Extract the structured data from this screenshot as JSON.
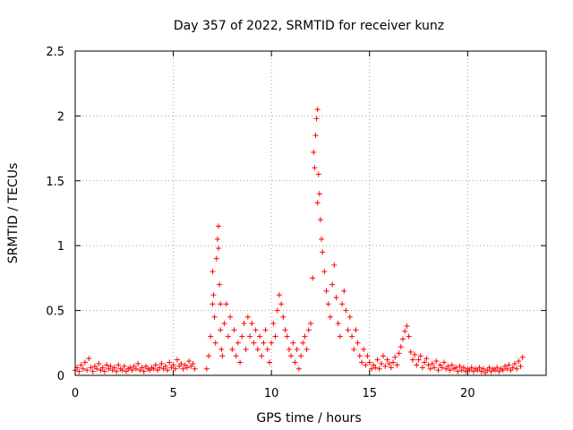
{
  "chart_data": {
    "type": "scatter",
    "title": "Day 357 of 2022, SRMTID for receiver kunz",
    "xlabel": "GPS time / hours",
    "ylabel": "SRMTID / TECUs",
    "xlim": [
      0,
      24
    ],
    "ylim": [
      0,
      2.5
    ],
    "xticks": [
      0,
      5,
      10,
      15,
      20
    ],
    "xtick_labels": [
      "0",
      "5",
      "10",
      "15",
      "20"
    ],
    "yticks": [
      0,
      0.5,
      1,
      1.5,
      2,
      2.5
    ],
    "ytick_labels": [
      "0",
      "0.5",
      "1",
      "1.5",
      "2",
      "2.5"
    ],
    "grid": true,
    "marker": "+",
    "color": "#ff0000",
    "series": [
      {
        "name": "SRMTID",
        "points": [
          [
            0.0,
            0.04
          ],
          [
            0.1,
            0.06
          ],
          [
            0.2,
            0.03
          ],
          [
            0.3,
            0.08
          ],
          [
            0.4,
            0.05
          ],
          [
            0.5,
            0.1
          ],
          [
            0.6,
            0.04
          ],
          [
            0.7,
            0.13
          ],
          [
            0.8,
            0.06
          ],
          [
            0.9,
            0.03
          ],
          [
            1.0,
            0.07
          ],
          [
            1.1,
            0.05
          ],
          [
            1.2,
            0.09
          ],
          [
            1.3,
            0.04
          ],
          [
            1.4,
            0.06
          ],
          [
            1.5,
            0.03
          ],
          [
            1.6,
            0.08
          ],
          [
            1.7,
            0.05
          ],
          [
            1.8,
            0.07
          ],
          [
            1.9,
            0.04
          ],
          [
            2.0,
            0.06
          ],
          [
            2.1,
            0.03
          ],
          [
            2.2,
            0.08
          ],
          [
            2.3,
            0.05
          ],
          [
            2.4,
            0.04
          ],
          [
            2.5,
            0.07
          ],
          [
            2.6,
            0.03
          ],
          [
            2.7,
            0.05
          ],
          [
            2.8,
            0.06
          ],
          [
            2.9,
            0.04
          ],
          [
            3.0,
            0.07
          ],
          [
            3.1,
            0.05
          ],
          [
            3.2,
            0.09
          ],
          [
            3.3,
            0.04
          ],
          [
            3.4,
            0.06
          ],
          [
            3.5,
            0.03
          ],
          [
            3.6,
            0.07
          ],
          [
            3.7,
            0.05
          ],
          [
            3.8,
            0.04
          ],
          [
            3.9,
            0.06
          ],
          [
            4.0,
            0.05
          ],
          [
            4.1,
            0.08
          ],
          [
            4.2,
            0.04
          ],
          [
            4.3,
            0.06
          ],
          [
            4.4,
            0.09
          ],
          [
            4.5,
            0.05
          ],
          [
            4.6,
            0.07
          ],
          [
            4.7,
            0.04
          ],
          [
            4.8,
            0.1
          ],
          [
            4.9,
            0.06
          ],
          [
            5.0,
            0.08
          ],
          [
            5.1,
            0.05
          ],
          [
            5.2,
            0.12
          ],
          [
            5.3,
            0.07
          ],
          [
            5.4,
            0.09
          ],
          [
            5.5,
            0.05
          ],
          [
            5.6,
            0.08
          ],
          [
            5.7,
            0.06
          ],
          [
            5.8,
            0.11
          ],
          [
            5.9,
            0.07
          ],
          [
            6.0,
            0.09
          ],
          [
            6.1,
            0.05
          ],
          [
            6.7,
            0.05
          ],
          [
            6.8,
            0.15
          ],
          [
            6.9,
            0.3
          ],
          [
            7.0,
            0.55
          ],
          [
            7.0,
            0.8
          ],
          [
            7.05,
            0.62
          ],
          [
            7.1,
            0.45
          ],
          [
            7.15,
            0.25
          ],
          [
            7.2,
            0.9
          ],
          [
            7.25,
            1.05
          ],
          [
            7.3,
            1.15
          ],
          [
            7.3,
            0.98
          ],
          [
            7.35,
            0.7
          ],
          [
            7.4,
            0.55
          ],
          [
            7.4,
            0.35
          ],
          [
            7.45,
            0.2
          ],
          [
            7.5,
            0.15
          ],
          [
            7.6,
            0.4
          ],
          [
            7.7,
            0.55
          ],
          [
            7.8,
            0.3
          ],
          [
            7.9,
            0.45
          ],
          [
            8.0,
            0.2
          ],
          [
            8.1,
            0.35
          ],
          [
            8.2,
            0.15
          ],
          [
            8.3,
            0.25
          ],
          [
            8.4,
            0.1
          ],
          [
            8.5,
            0.3
          ],
          [
            8.6,
            0.4
          ],
          [
            8.7,
            0.2
          ],
          [
            8.8,
            0.45
          ],
          [
            8.9,
            0.3
          ],
          [
            9.0,
            0.4
          ],
          [
            9.1,
            0.25
          ],
          [
            9.2,
            0.35
          ],
          [
            9.3,
            0.2
          ],
          [
            9.4,
            0.3
          ],
          [
            9.5,
            0.15
          ],
          [
            9.6,
            0.25
          ],
          [
            9.7,
            0.35
          ],
          [
            9.8,
            0.2
          ],
          [
            9.9,
            0.1
          ],
          [
            10.0,
            0.25
          ],
          [
            10.1,
            0.4
          ],
          [
            10.2,
            0.3
          ],
          [
            10.3,
            0.5
          ],
          [
            10.4,
            0.62
          ],
          [
            10.5,
            0.55
          ],
          [
            10.6,
            0.45
          ],
          [
            10.7,
            0.35
          ],
          [
            10.8,
            0.3
          ],
          [
            10.9,
            0.2
          ],
          [
            11.0,
            0.15
          ],
          [
            11.1,
            0.25
          ],
          [
            11.2,
            0.1
          ],
          [
            11.3,
            0.2
          ],
          [
            11.4,
            0.05
          ],
          [
            11.5,
            0.15
          ],
          [
            11.6,
            0.25
          ],
          [
            11.7,
            0.3
          ],
          [
            11.8,
            0.2
          ],
          [
            11.9,
            0.35
          ],
          [
            12.0,
            0.4
          ],
          [
            12.1,
            0.75
          ],
          [
            12.15,
            1.72
          ],
          [
            12.2,
            1.6
          ],
          [
            12.25,
            1.85
          ],
          [
            12.3,
            1.98
          ],
          [
            12.35,
            2.05
          ],
          [
            12.35,
            1.33
          ],
          [
            12.4,
            1.55
          ],
          [
            12.45,
            1.4
          ],
          [
            12.5,
            1.2
          ],
          [
            12.55,
            1.05
          ],
          [
            12.6,
            0.95
          ],
          [
            12.7,
            0.8
          ],
          [
            12.8,
            0.65
          ],
          [
            12.9,
            0.55
          ],
          [
            13.0,
            0.45
          ],
          [
            13.1,
            0.7
          ],
          [
            13.2,
            0.85
          ],
          [
            13.3,
            0.6
          ],
          [
            13.4,
            0.4
          ],
          [
            13.5,
            0.3
          ],
          [
            13.6,
            0.55
          ],
          [
            13.7,
            0.65
          ],
          [
            13.8,
            0.5
          ],
          [
            13.9,
            0.35
          ],
          [
            14.0,
            0.45
          ],
          [
            14.1,
            0.3
          ],
          [
            14.2,
            0.2
          ],
          [
            14.3,
            0.35
          ],
          [
            14.4,
            0.25
          ],
          [
            14.5,
            0.15
          ],
          [
            14.6,
            0.1
          ],
          [
            14.7,
            0.2
          ],
          [
            14.8,
            0.08
          ],
          [
            14.9,
            0.15
          ],
          [
            15.0,
            0.1
          ],
          [
            15.1,
            0.05
          ],
          [
            15.2,
            0.08
          ],
          [
            15.3,
            0.06
          ],
          [
            15.4,
            0.12
          ],
          [
            15.5,
            0.05
          ],
          [
            15.6,
            0.09
          ],
          [
            15.7,
            0.15
          ],
          [
            15.8,
            0.07
          ],
          [
            15.9,
            0.12
          ],
          [
            16.0,
            0.09
          ],
          [
            16.1,
            0.06
          ],
          [
            16.2,
            0.1
          ],
          [
            16.3,
            0.14
          ],
          [
            16.4,
            0.08
          ],
          [
            16.5,
            0.17
          ],
          [
            16.6,
            0.22
          ],
          [
            16.7,
            0.28
          ],
          [
            16.8,
            0.34
          ],
          [
            16.9,
            0.38
          ],
          [
            17.0,
            0.3
          ],
          [
            17.1,
            0.18
          ],
          [
            17.2,
            0.12
          ],
          [
            17.3,
            0.16
          ],
          [
            17.4,
            0.08
          ],
          [
            17.5,
            0.12
          ],
          [
            17.6,
            0.15
          ],
          [
            17.7,
            0.06
          ],
          [
            17.8,
            0.1
          ],
          [
            17.9,
            0.13
          ],
          [
            18.0,
            0.08
          ],
          [
            18.1,
            0.05
          ],
          [
            18.2,
            0.09
          ],
          [
            18.3,
            0.06
          ],
          [
            18.4,
            0.11
          ],
          [
            18.5,
            0.04
          ],
          [
            18.6,
            0.08
          ],
          [
            18.7,
            0.06
          ],
          [
            18.8,
            0.1
          ],
          [
            18.9,
            0.05
          ],
          [
            19.0,
            0.07
          ],
          [
            19.1,
            0.04
          ],
          [
            19.2,
            0.08
          ],
          [
            19.3,
            0.05
          ],
          [
            19.4,
            0.06
          ],
          [
            19.5,
            0.03
          ],
          [
            19.6,
            0.07
          ],
          [
            19.7,
            0.04
          ],
          [
            19.8,
            0.06
          ],
          [
            19.9,
            0.03
          ],
          [
            20.0,
            0.05
          ],
          [
            20.1,
            0.04
          ],
          [
            20.2,
            0.06
          ],
          [
            20.3,
            0.03
          ],
          [
            20.4,
            0.05
          ],
          [
            20.5,
            0.04
          ],
          [
            20.6,
            0.06
          ],
          [
            20.7,
            0.03
          ],
          [
            20.8,
            0.05
          ],
          [
            20.9,
            0.02
          ],
          [
            21.0,
            0.04
          ],
          [
            21.1,
            0.06
          ],
          [
            21.2,
            0.03
          ],
          [
            21.3,
            0.05
          ],
          [
            21.4,
            0.04
          ],
          [
            21.5,
            0.06
          ],
          [
            21.6,
            0.03
          ],
          [
            21.7,
            0.05
          ],
          [
            21.8,
            0.04
          ],
          [
            21.9,
            0.07
          ],
          [
            22.0,
            0.05
          ],
          [
            22.1,
            0.08
          ],
          [
            22.2,
            0.04
          ],
          [
            22.3,
            0.06
          ],
          [
            22.4,
            0.09
          ],
          [
            22.5,
            0.05
          ],
          [
            22.6,
            0.11
          ],
          [
            22.7,
            0.07
          ],
          [
            22.8,
            0.14
          ]
        ]
      }
    ]
  }
}
